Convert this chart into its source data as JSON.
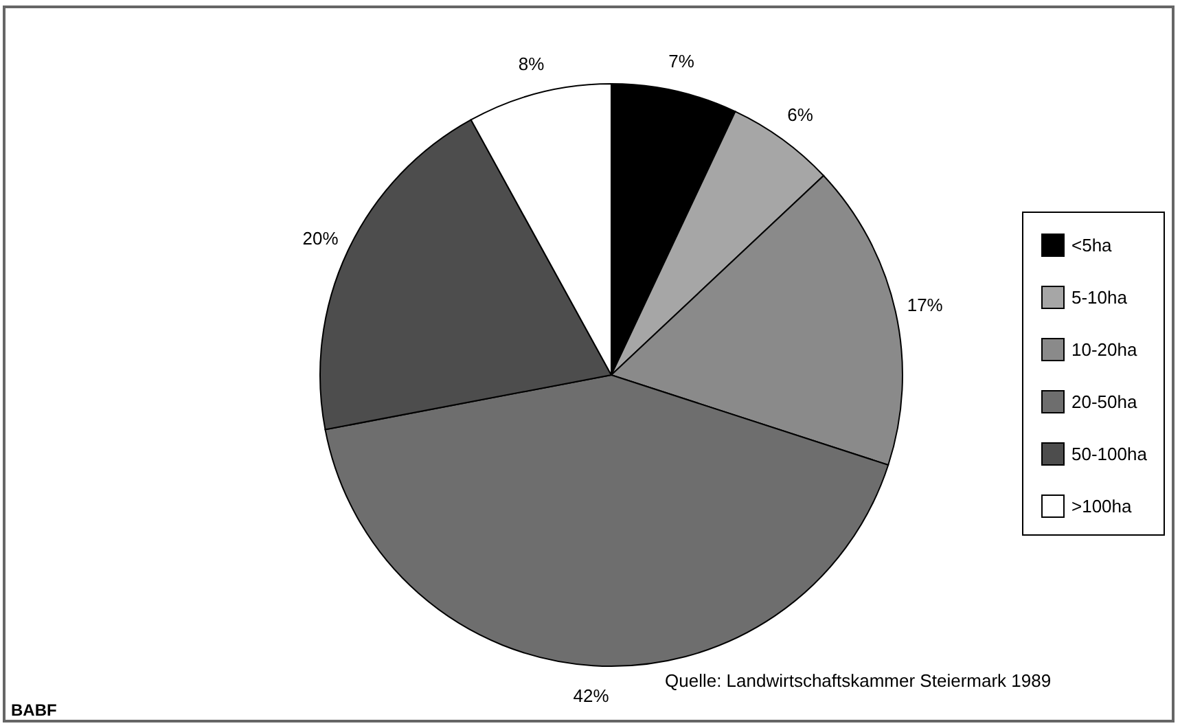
{
  "chart_data": {
    "type": "pie",
    "categories": [
      "<5ha",
      "5-10ha",
      "10-20ha",
      "20-50ha",
      "50-100ha",
      ">100ha"
    ],
    "values": [
      7,
      6,
      17,
      42,
      20,
      8
    ],
    "value_labels": [
      "7%",
      "6%",
      "17%",
      "42%",
      "20%",
      "8%"
    ],
    "colors": [
      "#000000",
      "#a6a6a6",
      "#8a8a8a",
      "#6e6e6e",
      "#4d4d4d",
      "#ffffff"
    ],
    "legend": "right",
    "annotations": [
      "Quelle: Landwirtschaftskammer Steiermark 1989",
      "BABF"
    ]
  }
}
